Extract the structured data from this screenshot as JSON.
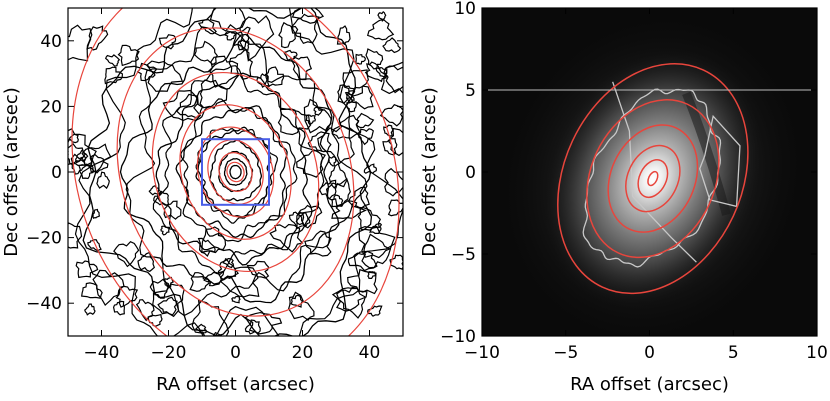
{
  "chart_data": [
    {
      "type": "contour",
      "panel": "left",
      "xlabel": "RA offset (arcsec)",
      "ylabel": "Dec offset (arcsec)",
      "xlim": [
        -50,
        50
      ],
      "ylim": [
        -50,
        50
      ],
      "xticks": [
        -40,
        -20,
        0,
        20,
        40
      ],
      "yticks": [
        -40,
        -20,
        0,
        20,
        40
      ],
      "xtick_labels": [
        "−40",
        "−20",
        "0",
        "20",
        "40"
      ],
      "ytick_labels": [
        "−40",
        "−20",
        "0",
        "20",
        "40"
      ],
      "contour_color": "#000000",
      "ellipse_color": "#e8453c",
      "box_color": "#4a5ee8",
      "fit_ellipses": [
        {
          "a": 3,
          "b": 2.5,
          "pa": 20
        },
        {
          "a": 6,
          "b": 4.8,
          "pa": 20
        },
        {
          "a": 10,
          "b": 8,
          "pa": 20
        },
        {
          "a": 14,
          "b": 11,
          "pa": 20
        },
        {
          "a": 21,
          "b": 16,
          "pa": 20
        },
        {
          "a": 31,
          "b": 24,
          "pa": 20
        },
        {
          "a": 45,
          "b": 34,
          "pa": 20
        },
        {
          "a": 62,
          "b": 47,
          "pa": 20
        }
      ],
      "contour_levels": [
        2,
        4,
        6,
        9,
        13,
        19,
        27,
        37,
        50
      ],
      "box": {
        "x": [
          -10,
          10
        ],
        "y": [
          -10,
          10
        ]
      }
    },
    {
      "type": "image",
      "panel": "right",
      "xlabel": "RA offset (arcsec)",
      "ylabel": "Dec offset (arcsec)",
      "xlim": [
        -10,
        10
      ],
      "ylim": [
        -10,
        10
      ],
      "xticks": [
        -10,
        -5,
        0,
        5,
        10
      ],
      "yticks": [
        -10,
        -5,
        0,
        5,
        10
      ],
      "xtick_labels": [
        "−10",
        "−5",
        "0",
        "5",
        "10"
      ],
      "ytick_labels": [
        "−10",
        "−5",
        "0",
        "5",
        "10"
      ],
      "ellipse_color": "#e8453c",
      "isophote_color": "#c8c8c8",
      "hline_y": 5,
      "fit_ellipses": [
        {
          "cx": 0.2,
          "cy": -0.4,
          "a": 0.45,
          "b": 0.25,
          "pa": 25
        },
        {
          "cx": 0.2,
          "cy": -0.4,
          "a": 1.2,
          "b": 0.8,
          "pa": 25
        },
        {
          "cx": 0.2,
          "cy": -0.4,
          "a": 2.1,
          "b": 1.5,
          "pa": 25
        },
        {
          "cx": 0.2,
          "cy": -0.4,
          "a": 3.4,
          "b": 2.5,
          "pa": 25
        },
        {
          "cx": 0.2,
          "cy": -0.4,
          "a": 5.0,
          "b": 3.7,
          "pa": 25
        },
        {
          "cx": 0.2,
          "cy": -0.4,
          "a": 7.3,
          "b": 5.3,
          "pa": 25
        }
      ]
    }
  ]
}
